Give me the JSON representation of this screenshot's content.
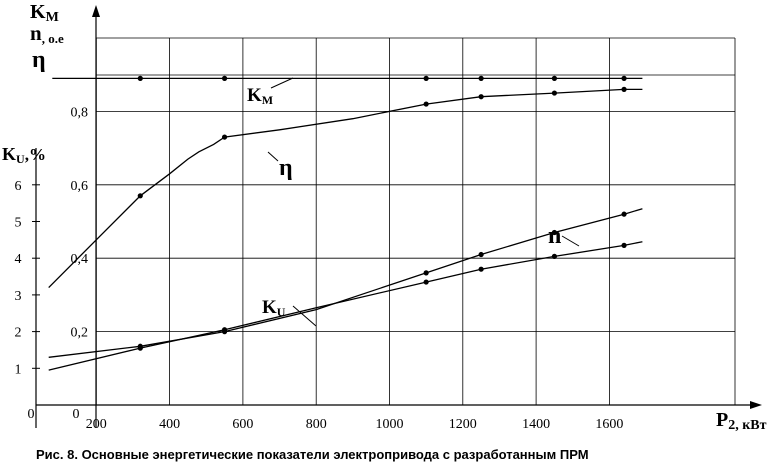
{
  "chart_data": {
    "type": "line",
    "x_axis": {
      "label_main": "P",
      "label_sub": "2, кВт",
      "range": [
        0,
        1700
      ],
      "ticks": [
        200,
        400,
        600,
        800,
        1000,
        1200,
        1400,
        1600
      ],
      "origin_label": "0"
    },
    "y_axis_left": {
      "label_main": "K",
      "label_sub": "U",
      "label_suffix": ",%",
      "range": [
        0,
        6.7
      ],
      "ticks": [
        1,
        2,
        3,
        4,
        5,
        6
      ],
      "origin_label": "0"
    },
    "y_axis_right": {
      "labels": [
        {
          "main": "K",
          "sub": "M"
        },
        {
          "main": "n",
          "sub": ", о.е"
        },
        {
          "main": "η",
          "sub": ""
        }
      ],
      "range": [
        0,
        1.0
      ],
      "ticks": [
        0.2,
        0.4,
        0.6,
        0.8
      ],
      "tick_labels": [
        "0,2",
        "0,4",
        "0,6",
        "0,8"
      ]
    },
    "series": [
      {
        "name": "KM",
        "label_main": "K",
        "label_sub": "M",
        "axis": "right",
        "points": [
          [
            80,
            0.89
          ],
          [
            320,
            0.89
          ],
          [
            550,
            0.89
          ],
          [
            1100,
            0.89
          ],
          [
            1250,
            0.89
          ],
          [
            1450,
            0.89
          ],
          [
            1640,
            0.89
          ],
          [
            1690,
            0.89
          ]
        ],
        "markers": [
          [
            320,
            0.89
          ],
          [
            550,
            0.89
          ],
          [
            1100,
            0.89
          ],
          [
            1250,
            0.89
          ],
          [
            1450,
            0.89
          ],
          [
            1640,
            0.89
          ]
        ]
      },
      {
        "name": "η",
        "label_main": "η",
        "label_sub": "",
        "axis": "right",
        "points": [
          [
            70,
            0.32
          ],
          [
            200,
            0.45
          ],
          [
            320,
            0.57
          ],
          [
            400,
            0.63
          ],
          [
            450,
            0.67
          ],
          [
            480,
            0.69
          ],
          [
            520,
            0.71
          ],
          [
            550,
            0.73
          ],
          [
            700,
            0.75
          ],
          [
            900,
            0.78
          ],
          [
            1100,
            0.82
          ],
          [
            1250,
            0.84
          ],
          [
            1450,
            0.85
          ],
          [
            1640,
            0.86
          ],
          [
            1690,
            0.86
          ]
        ],
        "markers": [
          [
            320,
            0.57
          ],
          [
            550,
            0.73
          ],
          [
            1100,
            0.82
          ],
          [
            1250,
            0.84
          ],
          [
            1450,
            0.85
          ],
          [
            1640,
            0.86
          ]
        ]
      },
      {
        "name": "n",
        "label_main": "n",
        "label_sub": "",
        "axis": "right",
        "points": [
          [
            70,
            0.13
          ],
          [
            320,
            0.16
          ],
          [
            550,
            0.2
          ],
          [
            800,
            0.26
          ],
          [
            1100,
            0.36
          ],
          [
            1250,
            0.41
          ],
          [
            1450,
            0.47
          ],
          [
            1640,
            0.52
          ],
          [
            1690,
            0.535
          ]
        ],
        "markers": [
          [
            320,
            0.16
          ],
          [
            550,
            0.2
          ],
          [
            1100,
            0.36
          ],
          [
            1250,
            0.41
          ],
          [
            1450,
            0.47
          ],
          [
            1640,
            0.52
          ]
        ]
      },
      {
        "name": "KU",
        "label_main": "K",
        "label_sub": "U",
        "axis": "left",
        "points": [
          [
            70,
            0.95
          ],
          [
            320,
            1.55
          ],
          [
            550,
            2.05
          ],
          [
            800,
            2.65
          ],
          [
            1100,
            3.35
          ],
          [
            1250,
            3.7
          ],
          [
            1450,
            4.05
          ],
          [
            1640,
            4.35
          ],
          [
            1690,
            4.45
          ]
        ],
        "markers": [
          [
            320,
            1.55
          ],
          [
            550,
            2.05
          ],
          [
            1100,
            3.35
          ],
          [
            1250,
            3.7
          ],
          [
            1450,
            4.05
          ],
          [
            1640,
            4.35
          ]
        ]
      }
    ],
    "grid": true
  },
  "caption": "Рис. 8. Основные энергетические показатели электропривода с разработанным ПРМ"
}
